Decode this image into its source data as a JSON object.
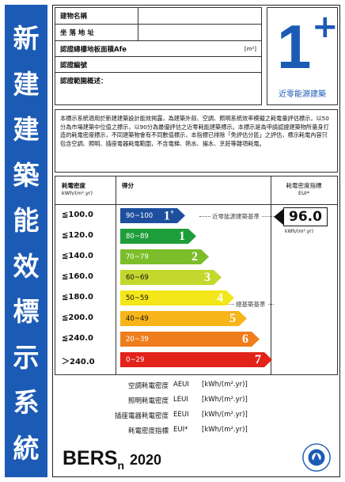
{
  "sidebar": {
    "chars": [
      "新",
      "建",
      "建",
      "築",
      "能",
      "效",
      "標",
      "示",
      "系",
      "統"
    ]
  },
  "header": {
    "rows": [
      {
        "label": "建物名稱"
      },
      {
        "label": "坐 落 地 址"
      },
      {
        "label": "認證總樓地板面積Afe",
        "unit": "[m²]"
      },
      {
        "label": "認證編號"
      },
      {
        "label": "認證範圍概述："
      }
    ]
  },
  "badge": {
    "number": "1",
    "plus": "+",
    "caption": "近零能源建築"
  },
  "description": "本標示系統適用於新建建築設計能效揭露，為建築外殼、空調、照明系統效率模擬之耗電量評估標示，以50分為市場建築中位值之標示，以90分為最優評估之近零耗能建築標示。本標示是為申請認證建築物所量身打造的耗電密度標示，不同建築物會有不同數值標示，本指標已排除「免評估分區」之評估，標示耗電內容只包含空調、照明、插座電器耗電範圍，不含電梯、熱水、揚水、烹飪等雜項耗電。",
  "rating": {
    "col_eui_header": "耗電密度",
    "col_eui_unit": "kWh/(m².yr)",
    "col_score_header": "得分",
    "col_index_header": "耗電密度指標",
    "col_index_unit": "EUI*",
    "levels": [
      {
        "threshold": "≦100.0",
        "range": "90~100",
        "grade": "1",
        "sup": "+",
        "color": "#1d4f9e",
        "textcolor": "#ffffff"
      },
      {
        "threshold": "≦120.0",
        "range": "80~89",
        "grade": "1",
        "sup": "",
        "color": "#1e9e3a",
        "textcolor": "#ffffff"
      },
      {
        "threshold": "≦140.0",
        "range": "70~79",
        "grade": "2",
        "sup": "",
        "color": "#7cbe2a",
        "textcolor": "#ffffff"
      },
      {
        "threshold": "≦160.0",
        "range": "60~69",
        "grade": "3",
        "sup": "",
        "color": "#c3d82d",
        "textcolor": "#111111"
      },
      {
        "threshold": "≦180.0",
        "range": "50~59",
        "grade": "4",
        "sup": "",
        "color": "#f3e61a",
        "textcolor": "#111111"
      },
      {
        "threshold": "≦200.0",
        "range": "40~49",
        "grade": "5",
        "sup": "",
        "color": "#f7b51a",
        "textcolor": "#111111"
      },
      {
        "threshold": "≦240.0",
        "range": "20~39",
        "grade": "6",
        "sup": "",
        "color": "#ef7d1c",
        "textcolor": "#ffffff"
      },
      {
        "threshold": "＞240.0",
        "range": "0~29",
        "grade": "7",
        "sup": "",
        "color": "#e2231a",
        "textcolor": "#ffffff"
      }
    ],
    "ref_nearzero": "近零能源建築基準",
    "ref_baseline": "總基築基準",
    "score_value": "96.0",
    "score_unit": "kWh/(m².yr)"
  },
  "eui_lines": [
    {
      "label": "空調耗電密度",
      "abbr": "AEUI",
      "unit": "[kWh/(m².yr)]"
    },
    {
      "label": "照明耗電密度",
      "abbr": "LEUI",
      "unit": "[kWh/(m².yr)]"
    },
    {
      "label": "插座電器耗電密度",
      "abbr": "EEUI",
      "unit": "[kWh/(m².yr)]"
    },
    {
      "label": "耗電密度指標",
      "abbr": "EUI*",
      "unit": "[kWh/(m².yr)]"
    }
  ],
  "footer": {
    "logo_main": "BERS",
    "logo_sub": "n",
    "logo_year": "2020",
    "seal_text": "MINISTRY OF THE INTERIOR 內政部"
  }
}
